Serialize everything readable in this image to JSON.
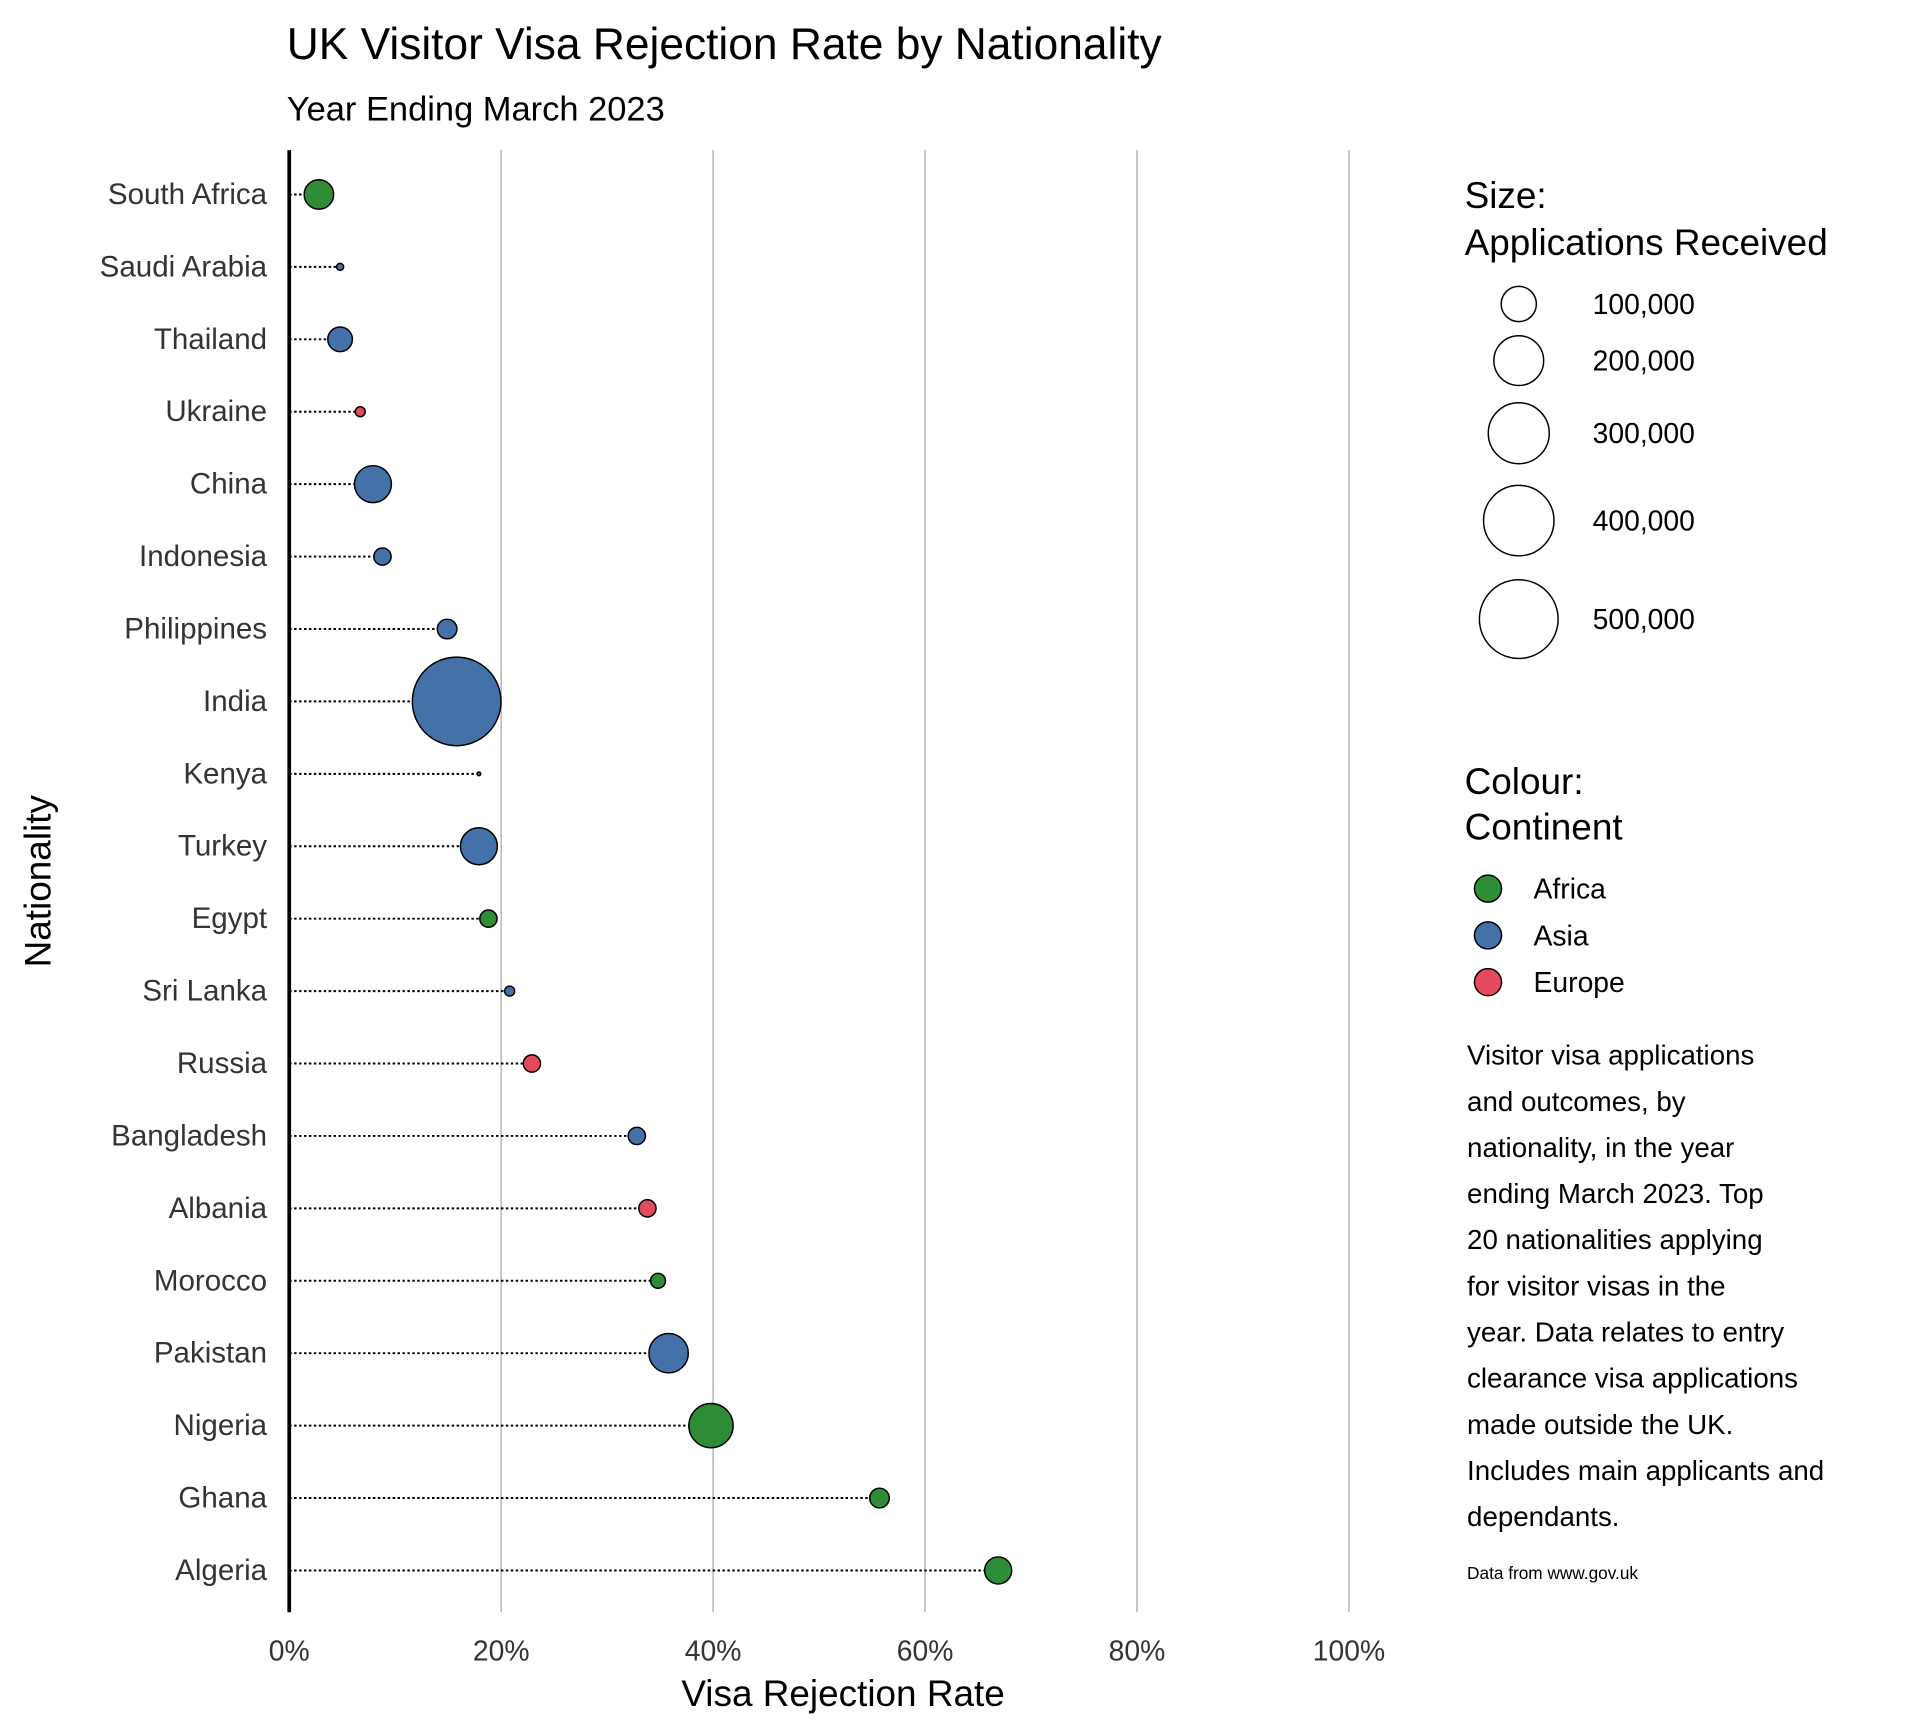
{
  "chart_data": {
    "type": "scatter",
    "subtype": "lollipop",
    "title": "UK Visitor Visa Rejection Rate by Nationality",
    "subtitle": "Year Ending March 2023",
    "xlabel": "Visa Rejection Rate",
    "ylabel": "Nationality",
    "xlim": [
      0,
      100
    ],
    "x_unit": "%",
    "x_ticks": [
      "0%",
      "20%",
      "40%",
      "60%",
      "80%",
      "100%"
    ],
    "x_tick_values": [
      0,
      20,
      40,
      60,
      80,
      100
    ],
    "grid": "vertical major",
    "points": [
      {
        "nationality": "South Africa",
        "rejection_rate": 2.8,
        "applications": 70000,
        "continent": "Africa"
      },
      {
        "nationality": "Saudi Arabia",
        "rejection_rate": 4.8,
        "applications": 4000,
        "continent": "Asia"
      },
      {
        "nationality": "Thailand",
        "rejection_rate": 4.8,
        "applications": 49000,
        "continent": "Asia"
      },
      {
        "nationality": "Ukraine",
        "rejection_rate": 6.7,
        "applications": 8000,
        "continent": "Europe"
      },
      {
        "nationality": "China",
        "rejection_rate": 7.9,
        "applications": 110000,
        "continent": "Asia"
      },
      {
        "nationality": "Indonesia",
        "rejection_rate": 8.8,
        "applications": 24000,
        "continent": "Asia"
      },
      {
        "nationality": "Philippines",
        "rejection_rate": 14.9,
        "applications": 31000,
        "continent": "Asia"
      },
      {
        "nationality": "India",
        "rejection_rate": 15.8,
        "applications": 634000,
        "continent": "Asia"
      },
      {
        "nationality": "Kenya",
        "rejection_rate": 17.9,
        "applications": 500,
        "continent": "Africa"
      },
      {
        "nationality": "Turkey",
        "rejection_rate": 17.9,
        "applications": 110000,
        "continent": "Asia"
      },
      {
        "nationality": "Egypt",
        "rejection_rate": 18.8,
        "applications": 24000,
        "continent": "Africa"
      },
      {
        "nationality": "Sri Lanka",
        "rejection_rate": 20.8,
        "applications": 8000,
        "continent": "Asia"
      },
      {
        "nationality": "Russia",
        "rejection_rate": 22.9,
        "applications": 24000,
        "continent": "Europe"
      },
      {
        "nationality": "Bangladesh",
        "rejection_rate": 32.8,
        "applications": 24000,
        "continent": "Asia"
      },
      {
        "nationality": "Albania",
        "rejection_rate": 33.8,
        "applications": 24000,
        "continent": "Europe"
      },
      {
        "nationality": "Morocco",
        "rejection_rate": 34.8,
        "applications": 18000,
        "continent": "Africa"
      },
      {
        "nationality": "Pakistan",
        "rejection_rate": 35.8,
        "applications": 125000,
        "continent": "Asia"
      },
      {
        "nationality": "Nigeria",
        "rejection_rate": 39.8,
        "applications": 158000,
        "continent": "Africa"
      },
      {
        "nationality": "Ghana",
        "rejection_rate": 55.7,
        "applications": 31000,
        "continent": "Africa"
      },
      {
        "nationality": "Algeria",
        "rejection_rate": 66.9,
        "applications": 59000,
        "continent": "Africa"
      }
    ],
    "size_legend": {
      "title_line1": "Size:",
      "title_line2": "Applications Received",
      "values": [
        100000,
        200000,
        300000,
        400000,
        500000
      ],
      "labels": [
        "100,000",
        "200,000",
        "300,000",
        "400,000",
        "500,000"
      ]
    },
    "colour_legend": {
      "title_line1": "Colour:",
      "title_line2": "Continent",
      "entries": [
        {
          "label": "Africa",
          "color": "#2e8b36"
        },
        {
          "label": "Asia",
          "color": "#4472a8"
        },
        {
          "label": "Europe",
          "color": "#e34a5e"
        }
      ]
    },
    "caption_lines": [
      "Visitor visa applications",
      "and outcomes, by",
      "nationality, in the year",
      "ending March 2023. Top",
      "20 nationalities applying",
      "for visitor visas in the",
      "year. Data relates to entry",
      "clearance visa applications",
      "made outside the UK.",
      "Includes main applicants and",
      "dependants."
    ],
    "source": "Data from www.gov.uk"
  }
}
